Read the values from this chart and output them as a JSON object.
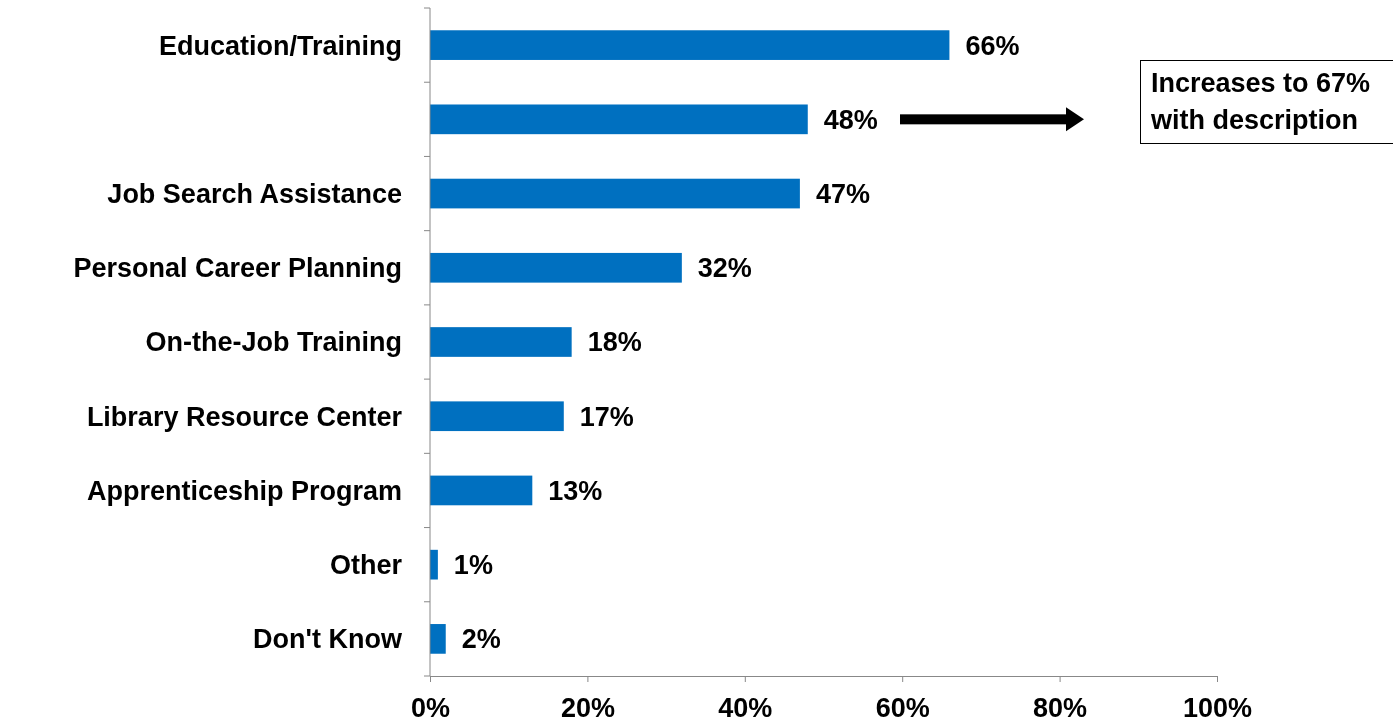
{
  "chart_data": {
    "type": "bar",
    "orientation": "horizontal",
    "categories": [
      "Education/Training",
      null,
      "Job Search Assistance",
      "Personal Career Planning",
      "On-the-Job Training",
      "Library Resource Center",
      "Apprenticeship Program",
      "Other",
      "Don't Know"
    ],
    "values": [
      66,
      48,
      47,
      32,
      18,
      17,
      13,
      1,
      2
    ],
    "value_labels": [
      "66%",
      "48%",
      "47%",
      "32%",
      "18%",
      "17%",
      "13%",
      "1%",
      "2%"
    ],
    "color": "#0070c0",
    "xlim": [
      0,
      100
    ],
    "xticks": [
      {
        "value": 0,
        "label": "0%"
      },
      {
        "value": 20,
        "label": "20%"
      },
      {
        "value": 40,
        "label": "40%"
      },
      {
        "value": 60,
        "label": "60%"
      },
      {
        "value": 80,
        "label": "80%"
      },
      {
        "value": 100,
        "label": "100%"
      }
    ],
    "grid": false,
    "annotations": [
      "Increases to 67% with description"
    ]
  }
}
